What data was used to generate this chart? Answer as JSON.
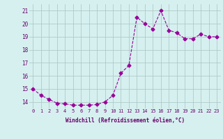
{
  "x": [
    0,
    1,
    2,
    3,
    4,
    5,
    6,
    7,
    8,
    9,
    10,
    11,
    12,
    13,
    14,
    15,
    16,
    17,
    18,
    19,
    20,
    21,
    22,
    23
  ],
  "y": [
    15.0,
    14.5,
    14.2,
    13.9,
    13.85,
    13.75,
    13.75,
    13.75,
    13.8,
    14.0,
    14.5,
    16.2,
    16.8,
    20.5,
    20.0,
    19.6,
    21.0,
    19.5,
    19.3,
    18.85,
    18.85,
    19.2,
    19.0,
    19.0
  ],
  "line_color": "#990099",
  "marker": "D",
  "marker_size": 2.5,
  "bg_color": "#d6f0f0",
  "grid_color": "#b0c8c8",
  "xlabel": "Windchill (Refroidissement éolien,°C)",
  "xlabel_color": "#660066",
  "tick_color": "#660066",
  "ylim": [
    13.5,
    21.5
  ],
  "xlim": [
    -0.5,
    23.5
  ],
  "yticks": [
    14,
    15,
    16,
    17,
    18,
    19,
    20,
    21
  ],
  "xtick_labels": [
    "0",
    "1",
    "2",
    "3",
    "4",
    "5",
    "6",
    "7",
    "8",
    "9",
    "10",
    "11",
    "12",
    "13",
    "14",
    "15",
    "16",
    "17",
    "18",
    "19",
    "20",
    "21",
    "22",
    "23"
  ]
}
